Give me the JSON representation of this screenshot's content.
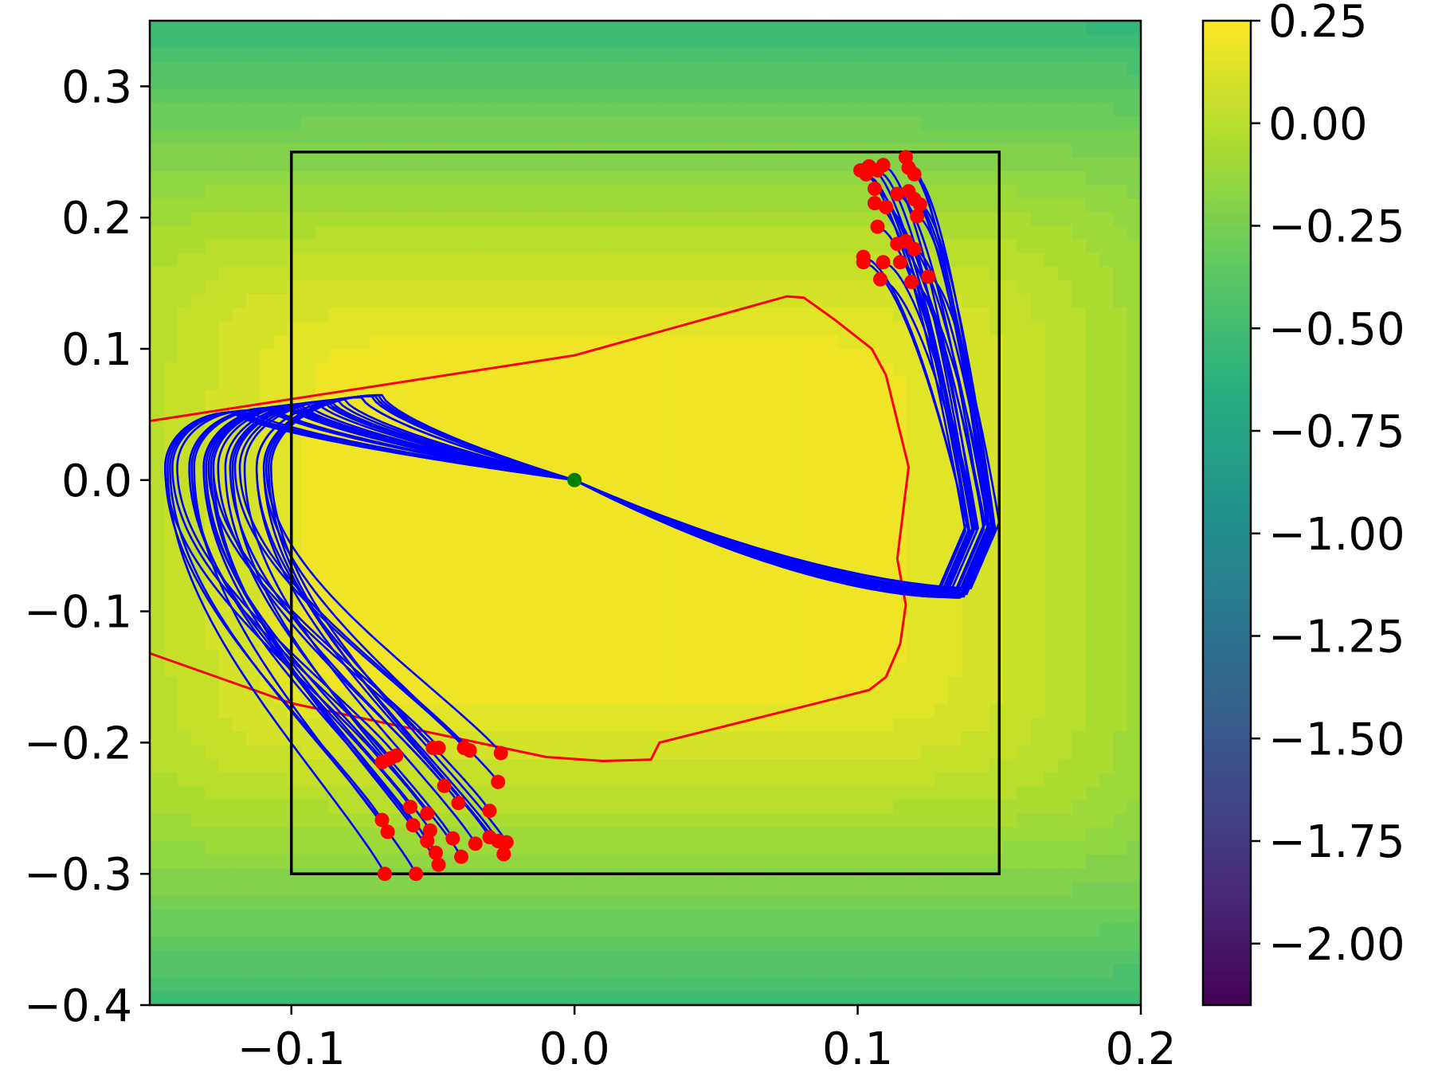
{
  "chart_data": {
    "type": "contour",
    "title": "",
    "xlabel": "",
    "ylabel": "",
    "xlim": [
      -0.15,
      0.2
    ],
    "ylim": [
      -0.4,
      0.35
    ],
    "x_ticks": [
      -0.1,
      0.0,
      0.1,
      0.2
    ],
    "x_tick_labels": [
      "−0.1",
      "0.0",
      "0.1",
      "0.2"
    ],
    "y_ticks": [
      0.3,
      0.2,
      0.1,
      0.0,
      -0.1,
      -0.2,
      -0.3,
      -0.4
    ],
    "y_tick_labels": [
      "0.3",
      "0.2",
      "0.1",
      "0.0",
      "−0.1",
      "−0.2",
      "−0.3",
      "−0.4"
    ],
    "colorbar": {
      "colormap": "viridis",
      "range": [
        -2.15,
        0.25
      ],
      "ticks": [
        0.25,
        0.0,
        -0.25,
        -0.5,
        -0.75,
        -1.0,
        -1.25,
        -1.5,
        -1.75,
        -2.0
      ],
      "tick_labels": [
        "0.25",
        "0.00",
        "−0.25",
        "−0.50",
        "−0.75",
        "−1.00",
        "−1.25",
        "−1.50",
        "−1.75",
        "−2.00"
      ]
    },
    "colors": {
      "trajectory": "#0000ff",
      "boundary": "#ff0000",
      "start_points": "#ff0000",
      "equilibrium": "#008000",
      "box": "#000000",
      "peak": "#e8e41d"
    },
    "box": {
      "x": [
        -0.1,
        0.15
      ],
      "y": [
        -0.3,
        0.25
      ]
    },
    "equilibrium": [
      0.0,
      0.0
    ],
    "boundary_curve": [
      [
        -0.15,
        0.045
      ],
      [
        0.0,
        0.095
      ],
      [
        0.075,
        0.14
      ],
      [
        0.081,
        0.139
      ],
      [
        0.092,
        0.122
      ],
      [
        0.105,
        0.1
      ],
      [
        0.11,
        0.08
      ],
      [
        0.118,
        0.01
      ],
      [
        0.114,
        -0.06
      ],
      [
        0.117,
        -0.095
      ],
      [
        0.115,
        -0.125
      ],
      [
        0.11,
        -0.15
      ],
      [
        0.104,
        -0.16
      ],
      [
        0.03,
        -0.2
      ],
      [
        0.027,
        -0.213
      ],
      [
        0.01,
        -0.214
      ],
      [
        -0.01,
        -0.211
      ],
      [
        -0.1,
        -0.17
      ],
      [
        -0.15,
        -0.132
      ]
    ],
    "left_start_points": [
      [
        -0.068,
        -0.215
      ],
      [
        -0.065,
        -0.212
      ],
      [
        -0.063,
        -0.21
      ],
      [
        -0.048,
        -0.204
      ],
      [
        -0.05,
        -0.204
      ],
      [
        -0.039,
        -0.204
      ],
      [
        -0.037,
        -0.206
      ],
      [
        -0.026,
        -0.208
      ],
      [
        -0.046,
        -0.233
      ],
      [
        -0.027,
        -0.23
      ],
      [
        -0.041,
        -0.246
      ],
      [
        -0.058,
        -0.249
      ],
      [
        -0.052,
        -0.254
      ],
      [
        -0.03,
        -0.252
      ],
      [
        -0.068,
        -0.259
      ],
      [
        -0.066,
        -0.268
      ],
      [
        -0.057,
        -0.263
      ],
      [
        -0.051,
        -0.267
      ],
      [
        -0.052,
        -0.275
      ],
      [
        -0.043,
        -0.273
      ],
      [
        -0.035,
        -0.277
      ],
      [
        -0.03,
        -0.272
      ],
      [
        -0.027,
        -0.275
      ],
      [
        -0.024,
        -0.276
      ],
      [
        -0.025,
        -0.285
      ],
      [
        -0.049,
        -0.284
      ],
      [
        -0.048,
        -0.293
      ],
      [
        -0.04,
        -0.287
      ],
      [
        -0.067,
        -0.3
      ],
      [
        -0.056,
        -0.3
      ]
    ],
    "right_start_points": [
      [
        0.101,
        0.236
      ],
      [
        0.103,
        0.233
      ],
      [
        0.104,
        0.239
      ],
      [
        0.107,
        0.236
      ],
      [
        0.109,
        0.24
      ],
      [
        0.117,
        0.246
      ],
      [
        0.118,
        0.238
      ],
      [
        0.12,
        0.233
      ],
      [
        0.106,
        0.222
      ],
      [
        0.114,
        0.218
      ],
      [
        0.118,
        0.22
      ],
      [
        0.12,
        0.214
      ],
      [
        0.122,
        0.21
      ],
      [
        0.106,
        0.211
      ],
      [
        0.11,
        0.208
      ],
      [
        0.121,
        0.201
      ],
      [
        0.107,
        0.193
      ],
      [
        0.114,
        0.18
      ],
      [
        0.117,
        0.182
      ],
      [
        0.12,
        0.176
      ],
      [
        0.102,
        0.17
      ],
      [
        0.102,
        0.166
      ],
      [
        0.109,
        0.166
      ],
      [
        0.115,
        0.166
      ],
      [
        0.108,
        0.153
      ],
      [
        0.119,
        0.151
      ],
      [
        0.125,
        0.155
      ]
    ]
  }
}
